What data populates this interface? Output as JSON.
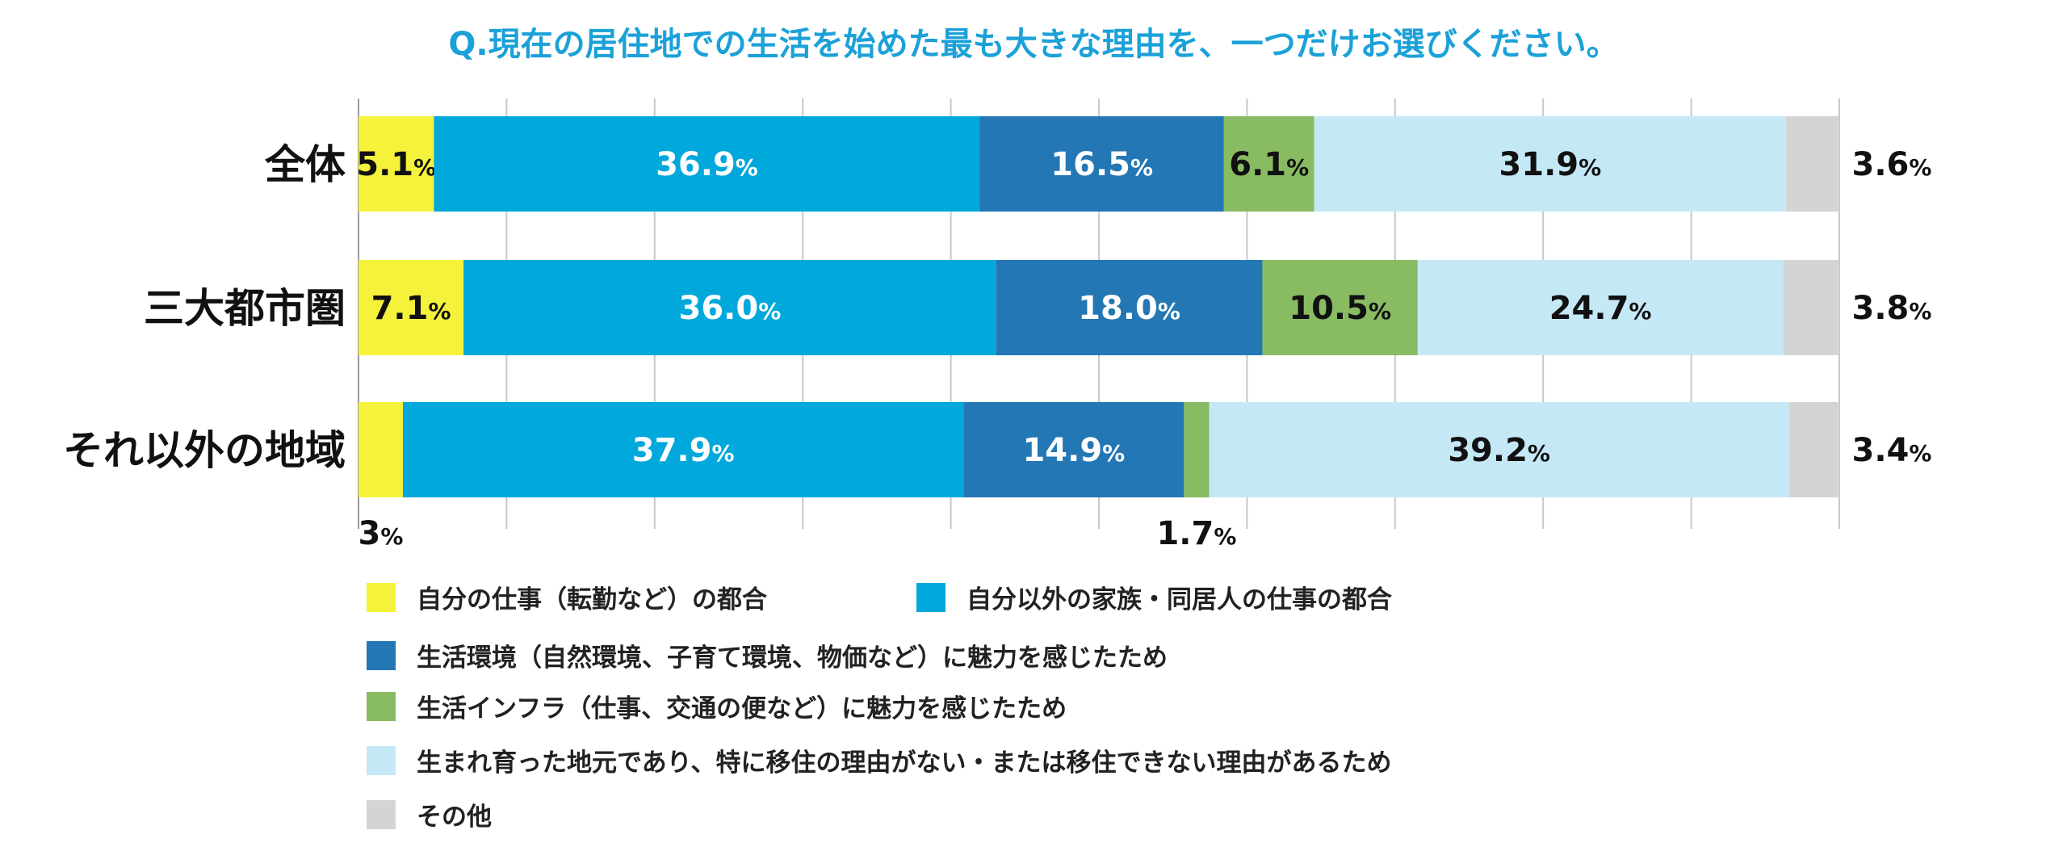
{
  "chart_data": {
    "type": "bar",
    "orientation": "horizontal-stacked-100",
    "title": "Q.現在の居住地での生活を始めた最も大きな理由を、一つだけお選びください。",
    "categories": [
      "全体",
      "三大都市圏",
      "それ以外の地域"
    ],
    "xlim": [
      0,
      100
    ],
    "grid": true,
    "value_suffix": "%",
    "series": [
      {
        "name": "自分の仕事（転勤など）の都合",
        "color": "#f5f23c",
        "label_color": "#111111",
        "values": [
          5.1,
          7.1,
          3
        ],
        "labels": [
          "5.1",
          "7.1",
          "3"
        ]
      },
      {
        "name": "自分以外の家族・同居人の仕事の都合",
        "color": "#00a8dc",
        "label_color": "#ffffff",
        "values": [
          36.9,
          36.0,
          37.9
        ],
        "labels": [
          "36.9",
          "36.0",
          "37.9"
        ]
      },
      {
        "name": "生活環境（自然環境、子育て環境、物価など）に魅力を感じたため",
        "color": "#2377b4",
        "label_color": "#ffffff",
        "values": [
          16.5,
          18.0,
          14.9
        ],
        "labels": [
          "16.5",
          "18.0",
          "14.9"
        ]
      },
      {
        "name": "生活インフラ（仕事、交通の便など）に魅力を感じたため",
        "color": "#88bb62",
        "label_color": "#111111",
        "values": [
          6.1,
          10.5,
          1.7
        ],
        "labels": [
          "6.1",
          "10.5",
          "1.7"
        ]
      },
      {
        "name": "生まれ育った地元であり、特に移住の理由がない・または移住できない理由があるため",
        "color": "#c5e8f6",
        "label_color": "#111111",
        "values": [
          31.9,
          24.7,
          39.2
        ],
        "labels": [
          "31.9",
          "24.7",
          "39.2"
        ]
      },
      {
        "name": "その他",
        "color": "#d4d4d4",
        "label_color": "#111111",
        "values": [
          3.6,
          3.8,
          3.4
        ],
        "labels": [
          "3.6",
          "3.8",
          "3.4"
        ]
      }
    ],
    "legend_position": "bottom"
  }
}
